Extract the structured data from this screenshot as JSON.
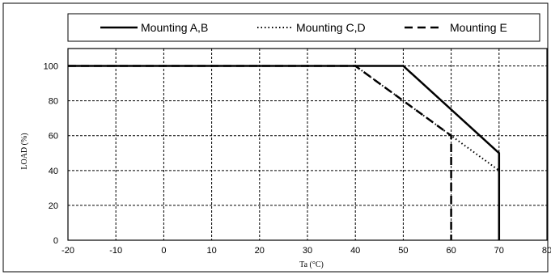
{
  "chart_data": {
    "type": "line",
    "xlabel": "Ta (°C)",
    "ylabel": "LOAD (%)",
    "xlim": [
      -20,
      80
    ],
    "ylim": [
      0,
      110
    ],
    "xticks": [
      "-20",
      "-10",
      "0",
      "10",
      "20",
      "30",
      "40",
      "50",
      "60",
      "70",
      "80"
    ],
    "yticks": [
      "0",
      "20",
      "40",
      "60",
      "80",
      "100"
    ],
    "grid": true,
    "legend_position": "top",
    "series": [
      {
        "name": "Mounting A,B",
        "style": "solid",
        "color": "#000000",
        "points": [
          [
            -20,
            100
          ],
          [
            50,
            100
          ],
          [
            70,
            50
          ],
          [
            70,
            0
          ]
        ]
      },
      {
        "name": "Mounting C,D",
        "style": "dotted",
        "color": "#000000",
        "points": [
          [
            -20,
            100
          ],
          [
            40,
            100
          ],
          [
            70,
            40
          ]
        ]
      },
      {
        "name": "Mounting E",
        "style": "dashed",
        "color": "#000000",
        "points": [
          [
            -20,
            100
          ],
          [
            40,
            100
          ],
          [
            60,
            60
          ],
          [
            60,
            0
          ]
        ]
      }
    ]
  }
}
